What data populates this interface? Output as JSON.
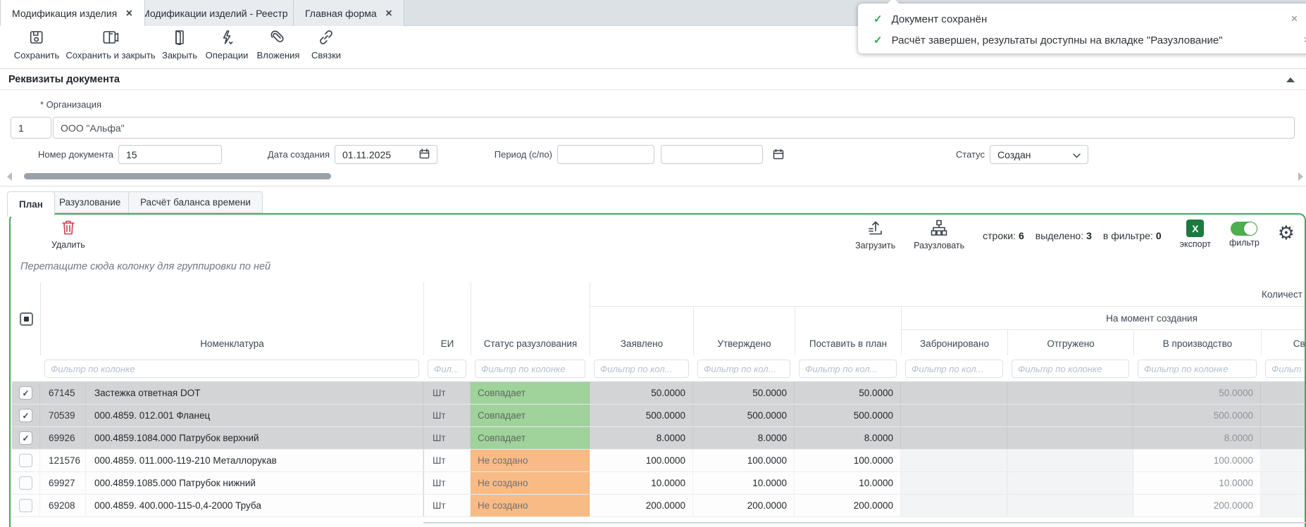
{
  "window_tabs": [
    {
      "label": "Модификация изделия",
      "active": true
    },
    {
      "label": "Модификации изделий - Реестр",
      "active": false
    },
    {
      "label": "Главная форма",
      "active": false
    }
  ],
  "toolbar": {
    "save_label": "Сохранить",
    "save_close_label": "Сохранить и закрыть",
    "close_label": "Закрыть",
    "operations_label": "Операции",
    "attachments_label": "Вложения",
    "links_label": "Связки"
  },
  "notifications": [
    {
      "text": "Документ сохранён"
    },
    {
      "text": "Расчёт завершен, результаты доступны на вкладке \"Разузлование\""
    }
  ],
  "document_section": {
    "title": "Реквизиты документа",
    "organization_label": "* Организация",
    "organization_code": "1",
    "organization_name": "ООО \"Альфа\"",
    "doc_number_label": "Номер документа",
    "doc_number": "15",
    "date_label": "Дата создания",
    "date_value": "01.11.2025",
    "period_label": "Период (с/по)",
    "period_from": "",
    "period_to": "",
    "status_label": "Статус",
    "status_value": "Создан"
  },
  "view_tabs": [
    {
      "label": "План",
      "active": true
    },
    {
      "label": "Разузлование",
      "active": false
    },
    {
      "label": "Расчёт баланса времени",
      "active": false
    }
  ],
  "grid_toolbar": {
    "delete_label": "Удалить",
    "load_label": "Загрузить",
    "explode_label": "Разузловать",
    "rows_label": "строки:",
    "rows_count": "6",
    "selected_label": "выделено:",
    "selected_count": "3",
    "filtered_label": "в фильтре:",
    "filtered_count": "0",
    "export_label": "экспорт",
    "export_icon_text": "X",
    "filter_label": "фильтр"
  },
  "grid": {
    "group_hint": "Перетащите сюда колонку для группировки по ней",
    "group_headers": {
      "quantity": "Количест",
      "at_creation": "На момент создания"
    },
    "columns": [
      {
        "key": "nomenclature",
        "label": "Номенклатура",
        "filter": "Фильтр по колонке"
      },
      {
        "key": "unit",
        "label": "ЕИ",
        "filter": "Фил..."
      },
      {
        "key": "status",
        "label": "Статус разузлования",
        "filter": "Фильтр по колонке"
      },
      {
        "key": "declared",
        "label": "Заявлено",
        "filter": "Фильтр по кол..."
      },
      {
        "key": "approved",
        "label": "Утверждено",
        "filter": "Фильтр по кол..."
      },
      {
        "key": "to_plan",
        "label": "Поставить в план",
        "filter": "Фильтр по кол..."
      },
      {
        "key": "reserved",
        "label": "Забронировано",
        "filter": "Фильтр по кол..."
      },
      {
        "key": "shipped",
        "label": "Отгружено",
        "filter": "Фильтр по колонке"
      },
      {
        "key": "in_production",
        "label": "В производство",
        "filter": "Фильтр по колонке"
      },
      {
        "key": "free",
        "label": "Свобо",
        "filter": "Фильт"
      }
    ],
    "rows": [
      {
        "checked": true,
        "id": "67145",
        "name": "Застежка ответная DOT",
        "unit": "Шт",
        "status": "Совпадает",
        "status_type": "match",
        "declared": "50.0000",
        "approved": "50.0000",
        "to_plan": "50.0000",
        "reserved": "",
        "shipped": "",
        "in_production": "50.0000",
        "free": ""
      },
      {
        "checked": true,
        "id": "70539",
        "name": "000.4859. 012.001 Фланец",
        "unit": "Шт",
        "status": "Совпадает",
        "status_type": "match",
        "declared": "500.0000",
        "approved": "500.0000",
        "to_plan": "500.0000",
        "reserved": "",
        "shipped": "",
        "in_production": "500.0000",
        "free": ""
      },
      {
        "checked": true,
        "id": "69926",
        "name": "000.4859.1084.000 Патрубок верхний",
        "unit": "Шт",
        "status": "Совпадает",
        "status_type": "match",
        "declared": "8.0000",
        "approved": "8.0000",
        "to_plan": "8.0000",
        "reserved": "",
        "shipped": "",
        "in_production": "8.0000",
        "free": ""
      },
      {
        "checked": false,
        "id": "121576",
        "name": "000.4859. 011.000-119-210 Металлорукав",
        "unit": "Шт",
        "status": "Не создано",
        "status_type": "missing",
        "declared": "100.0000",
        "approved": "100.0000",
        "to_plan": "100.0000",
        "reserved": "",
        "shipped": "",
        "in_production": "100.0000",
        "free": ""
      },
      {
        "checked": false,
        "id": "69927",
        "name": "000.4859.1085.000 Патрубок нижний",
        "unit": "Шт",
        "status": "Не создано",
        "status_type": "missing",
        "declared": "10.0000",
        "approved": "10.0000",
        "to_plan": "10.0000",
        "reserved": "",
        "shipped": "",
        "in_production": "10.0000",
        "free": ""
      },
      {
        "checked": false,
        "id": "69208",
        "name": "000.4859. 400.000-115-0,4-2000 Труба",
        "unit": "Шт",
        "status": "Не создано",
        "status_type": "missing",
        "declared": "200.0000",
        "approved": "200.0000",
        "to_plan": "200.0000",
        "reserved": "",
        "shipped": "",
        "in_production": "200.0000",
        "free": ""
      }
    ]
  },
  "colors": {
    "panel_border_green": "#44a661",
    "status_match_bg": "#a0d29b",
    "status_match_text": "#5d6b5d",
    "status_missing_bg": "#f8bb86",
    "status_missing_text": "#707070",
    "selected_row_bg": "#d3d4d6",
    "toggle_green": "#4caf50",
    "export_green": "#1d7a3e",
    "delete_red": "#d23c50",
    "toast_check_green": "#2ba84a"
  }
}
